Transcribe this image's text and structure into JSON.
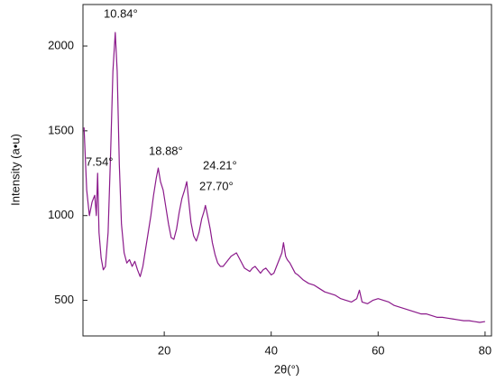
{
  "chart_data": {
    "type": "line",
    "x_label": "2θ(°)",
    "y_label": "Intensity (a•u)",
    "x": [
      5,
      5.5,
      6,
      6.5,
      7,
      7.3,
      7.54,
      7.8,
      8.2,
      8.6,
      9,
      9.5,
      10,
      10.4,
      10.84,
      11.2,
      11.6,
      12,
      12.5,
      13,
      13.5,
      14,
      14.5,
      15,
      15.5,
      16,
      16.5,
      17,
      17.5,
      18,
      18.5,
      18.88,
      19.3,
      19.8,
      20.3,
      20.8,
      21.3,
      21.8,
      22.3,
      22.8,
      23.3,
      23.8,
      24.21,
      24.6,
      25,
      25.5,
      26,
      26.5,
      27,
      27.4,
      27.7,
      28.1,
      28.6,
      29,
      29.5,
      30,
      30.5,
      31,
      31.5,
      32,
      32.5,
      33,
      33.5,
      34,
      34.5,
      35,
      35.5,
      36,
      36.5,
      37,
      37.5,
      38,
      38.5,
      39,
      39.5,
      40,
      40.5,
      41,
      41.5,
      42,
      42.3,
      42.7,
      43,
      43.5,
      44,
      44.5,
      45,
      46,
      47,
      48,
      49,
      50,
      51,
      52,
      53,
      54,
      55,
      56,
      56.5,
      57,
      58,
      59,
      60,
      61,
      62,
      63,
      64,
      65,
      66,
      67,
      68,
      69,
      70,
      71,
      72,
      73,
      74,
      75,
      76,
      77,
      78,
      79,
      80
    ],
    "series": [
      {
        "color": "#8b1a8b",
        "values": [
          1520,
          1150,
          1000,
          1080,
          1120,
          1000,
          1250,
          900,
          750,
          680,
          700,
          900,
          1400,
          1850,
          2080,
          1850,
          1300,
          950,
          780,
          720,
          740,
          700,
          730,
          680,
          640,
          700,
          800,
          900,
          1000,
          1120,
          1220,
          1280,
          1200,
          1150,
          1050,
          950,
          870,
          860,
          920,
          1020,
          1100,
          1150,
          1200,
          1080,
          960,
          880,
          850,
          900,
          980,
          1020,
          1060,
          1000,
          920,
          840,
          770,
          720,
          700,
          700,
          720,
          740,
          760,
          770,
          780,
          750,
          720,
          690,
          680,
          670,
          690,
          700,
          680,
          660,
          680,
          690,
          670,
          650,
          660,
          700,
          740,
          780,
          840,
          760,
          740,
          720,
          690,
          660,
          650,
          620,
          600,
          590,
          570,
          550,
          540,
          530,
          510,
          500,
          490,
          510,
          560,
          490,
          480,
          500,
          510,
          500,
          490,
          470,
          460,
          450,
          440,
          430,
          420,
          420,
          410,
          400,
          400,
          395,
          390,
          385,
          380,
          380,
          375,
          370,
          375
        ]
      }
    ],
    "annotations": [
      "10.84°",
      "7.54°",
      "18.88°",
      "24.21°",
      "27.70°"
    ],
    "xlim": [
      4.8,
      81.2
    ],
    "ylim": [
      290,
      2245
    ],
    "xticks": [
      20,
      40,
      60,
      80
    ],
    "yticks": [
      500,
      1000,
      1500,
      2000
    ]
  }
}
